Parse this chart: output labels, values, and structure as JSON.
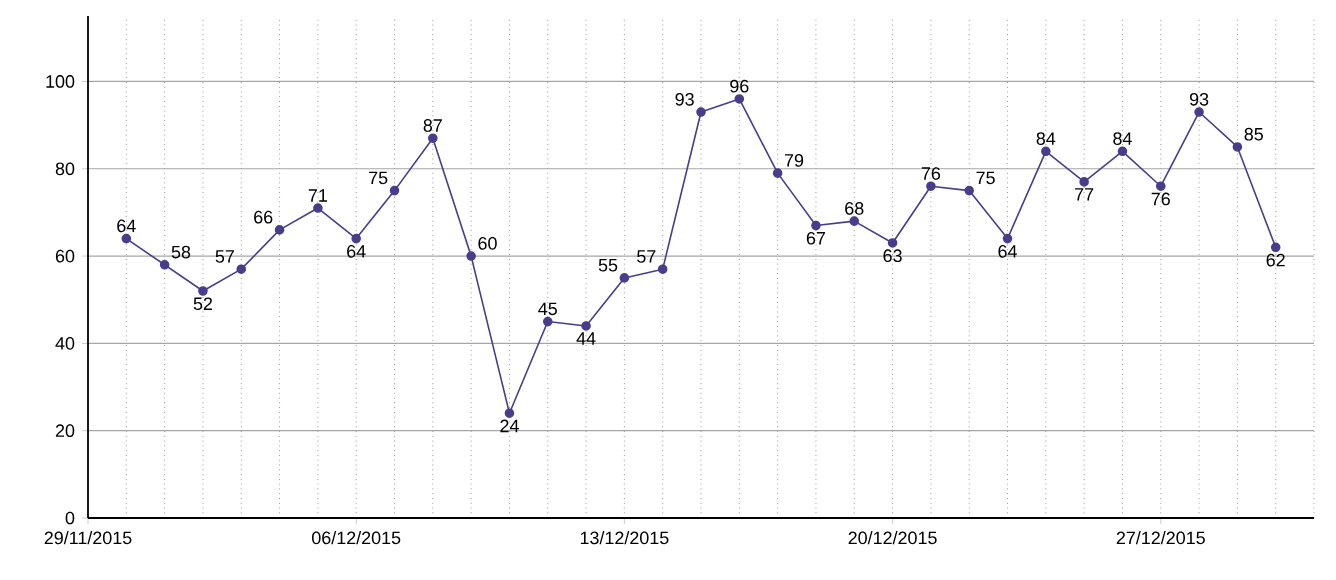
{
  "chart_data": {
    "type": "line",
    "x": [
      "2015-11-30",
      "2015-12-01",
      "2015-12-02",
      "2015-12-03",
      "2015-12-04",
      "2015-12-05",
      "2015-12-06",
      "2015-12-07",
      "2015-12-08",
      "2015-12-09",
      "2015-12-10",
      "2015-12-11",
      "2015-12-12",
      "2015-12-13",
      "2015-12-14",
      "2015-12-15",
      "2015-12-16",
      "2015-12-17",
      "2015-12-18",
      "2015-12-19",
      "2015-12-20",
      "2015-12-21",
      "2015-12-22",
      "2015-12-23",
      "2015-12-24",
      "2015-12-25",
      "2015-12-26",
      "2015-12-27",
      "2015-12-28",
      "2015-12-29",
      "2015-12-30"
    ],
    "values": [
      64,
      58,
      52,
      57,
      66,
      71,
      64,
      75,
      87,
      60,
      24,
      45,
      44,
      55,
      57,
      93,
      96,
      79,
      67,
      68,
      63,
      76,
      75,
      64,
      84,
      77,
      84,
      76,
      93,
      85,
      62
    ],
    "color": "#483d8b",
    "marker": "circle",
    "line_style": "solid",
    "data_labels": true,
    "grid": true,
    "xlim": [
      "2015-11-29",
      "2015-12-31"
    ],
    "xticks": [
      {
        "value": "2015-11-29",
        "label": "29/11/2015"
      },
      {
        "value": "2015-12-06",
        "label": "06/12/2015"
      },
      {
        "value": "2015-12-13",
        "label": "13/12/2015"
      },
      {
        "value": "2015-12-20",
        "label": "20/12/2015"
      },
      {
        "value": "2015-12-27",
        "label": "27/12/2015"
      }
    ],
    "ylim": [
      0,
      115
    ],
    "yticks": [
      0,
      20,
      40,
      60,
      80,
      100
    ]
  }
}
